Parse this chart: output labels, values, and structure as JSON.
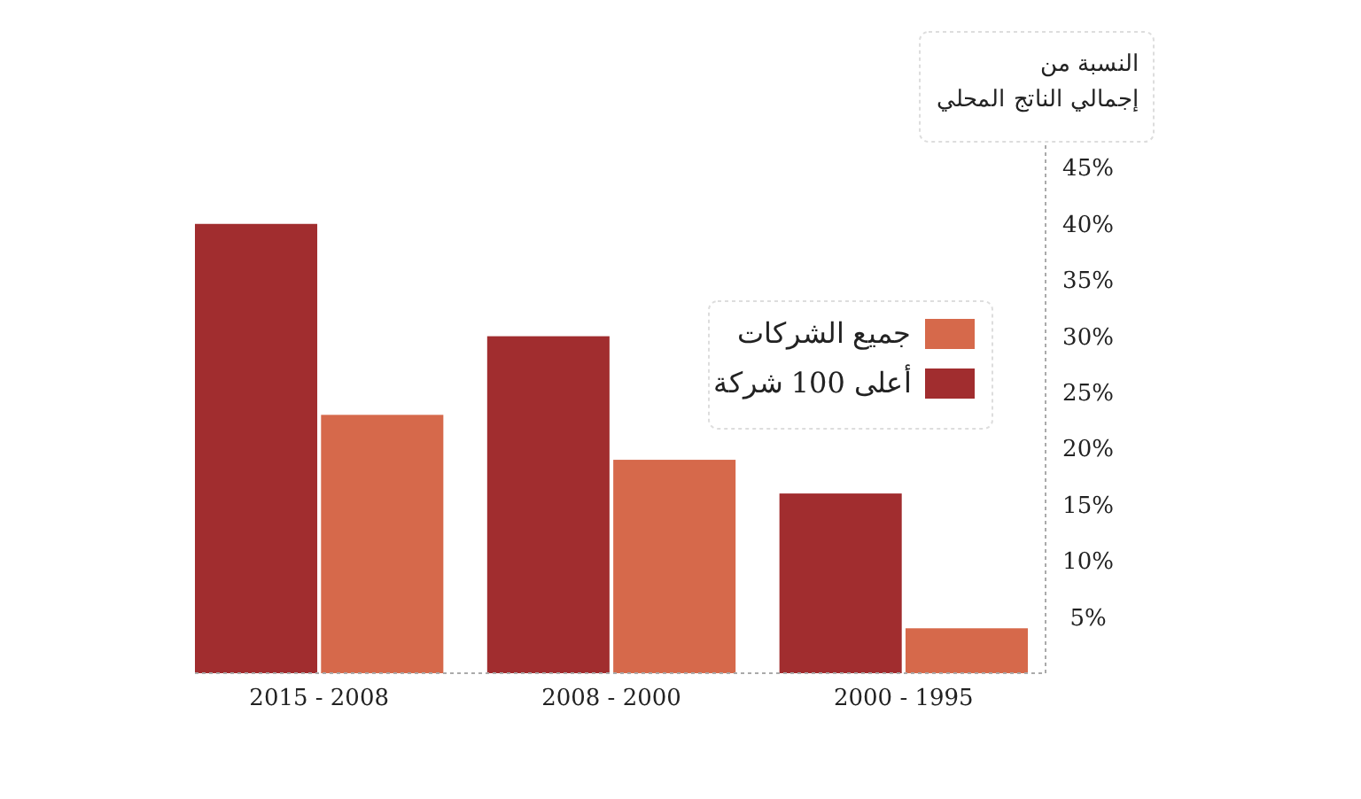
{
  "chart_data": {
    "type": "bar",
    "ylabel": "النسبة من\nإجمالي الناتج المحلي",
    "categories": [
      "2015 - 2008",
      "2008 - 2000",
      "2000 - 1995"
    ],
    "series": [
      {
        "name": "أعلى 100 شركة",
        "color": "#a12d2f",
        "values": [
          40,
          30,
          16
        ]
      },
      {
        "name": "جميع الشركات",
        "color": "#d6694b",
        "values": [
          23,
          19,
          4
        ]
      }
    ],
    "ylim": [
      0,
      47
    ],
    "yticks": [
      {
        "value": 5,
        "label": "5%"
      },
      {
        "value": 10,
        "label": "10%"
      },
      {
        "value": 15,
        "label": "15%"
      },
      {
        "value": 20,
        "label": "20%"
      },
      {
        "value": 25,
        "label": "25%"
      },
      {
        "value": 30,
        "label": "30%"
      },
      {
        "value": 35,
        "label": "35%"
      },
      {
        "value": 40,
        "label": "40%"
      },
      {
        "value": 45,
        "label": "45%"
      }
    ],
    "legend": "top right",
    "grid": false
  }
}
